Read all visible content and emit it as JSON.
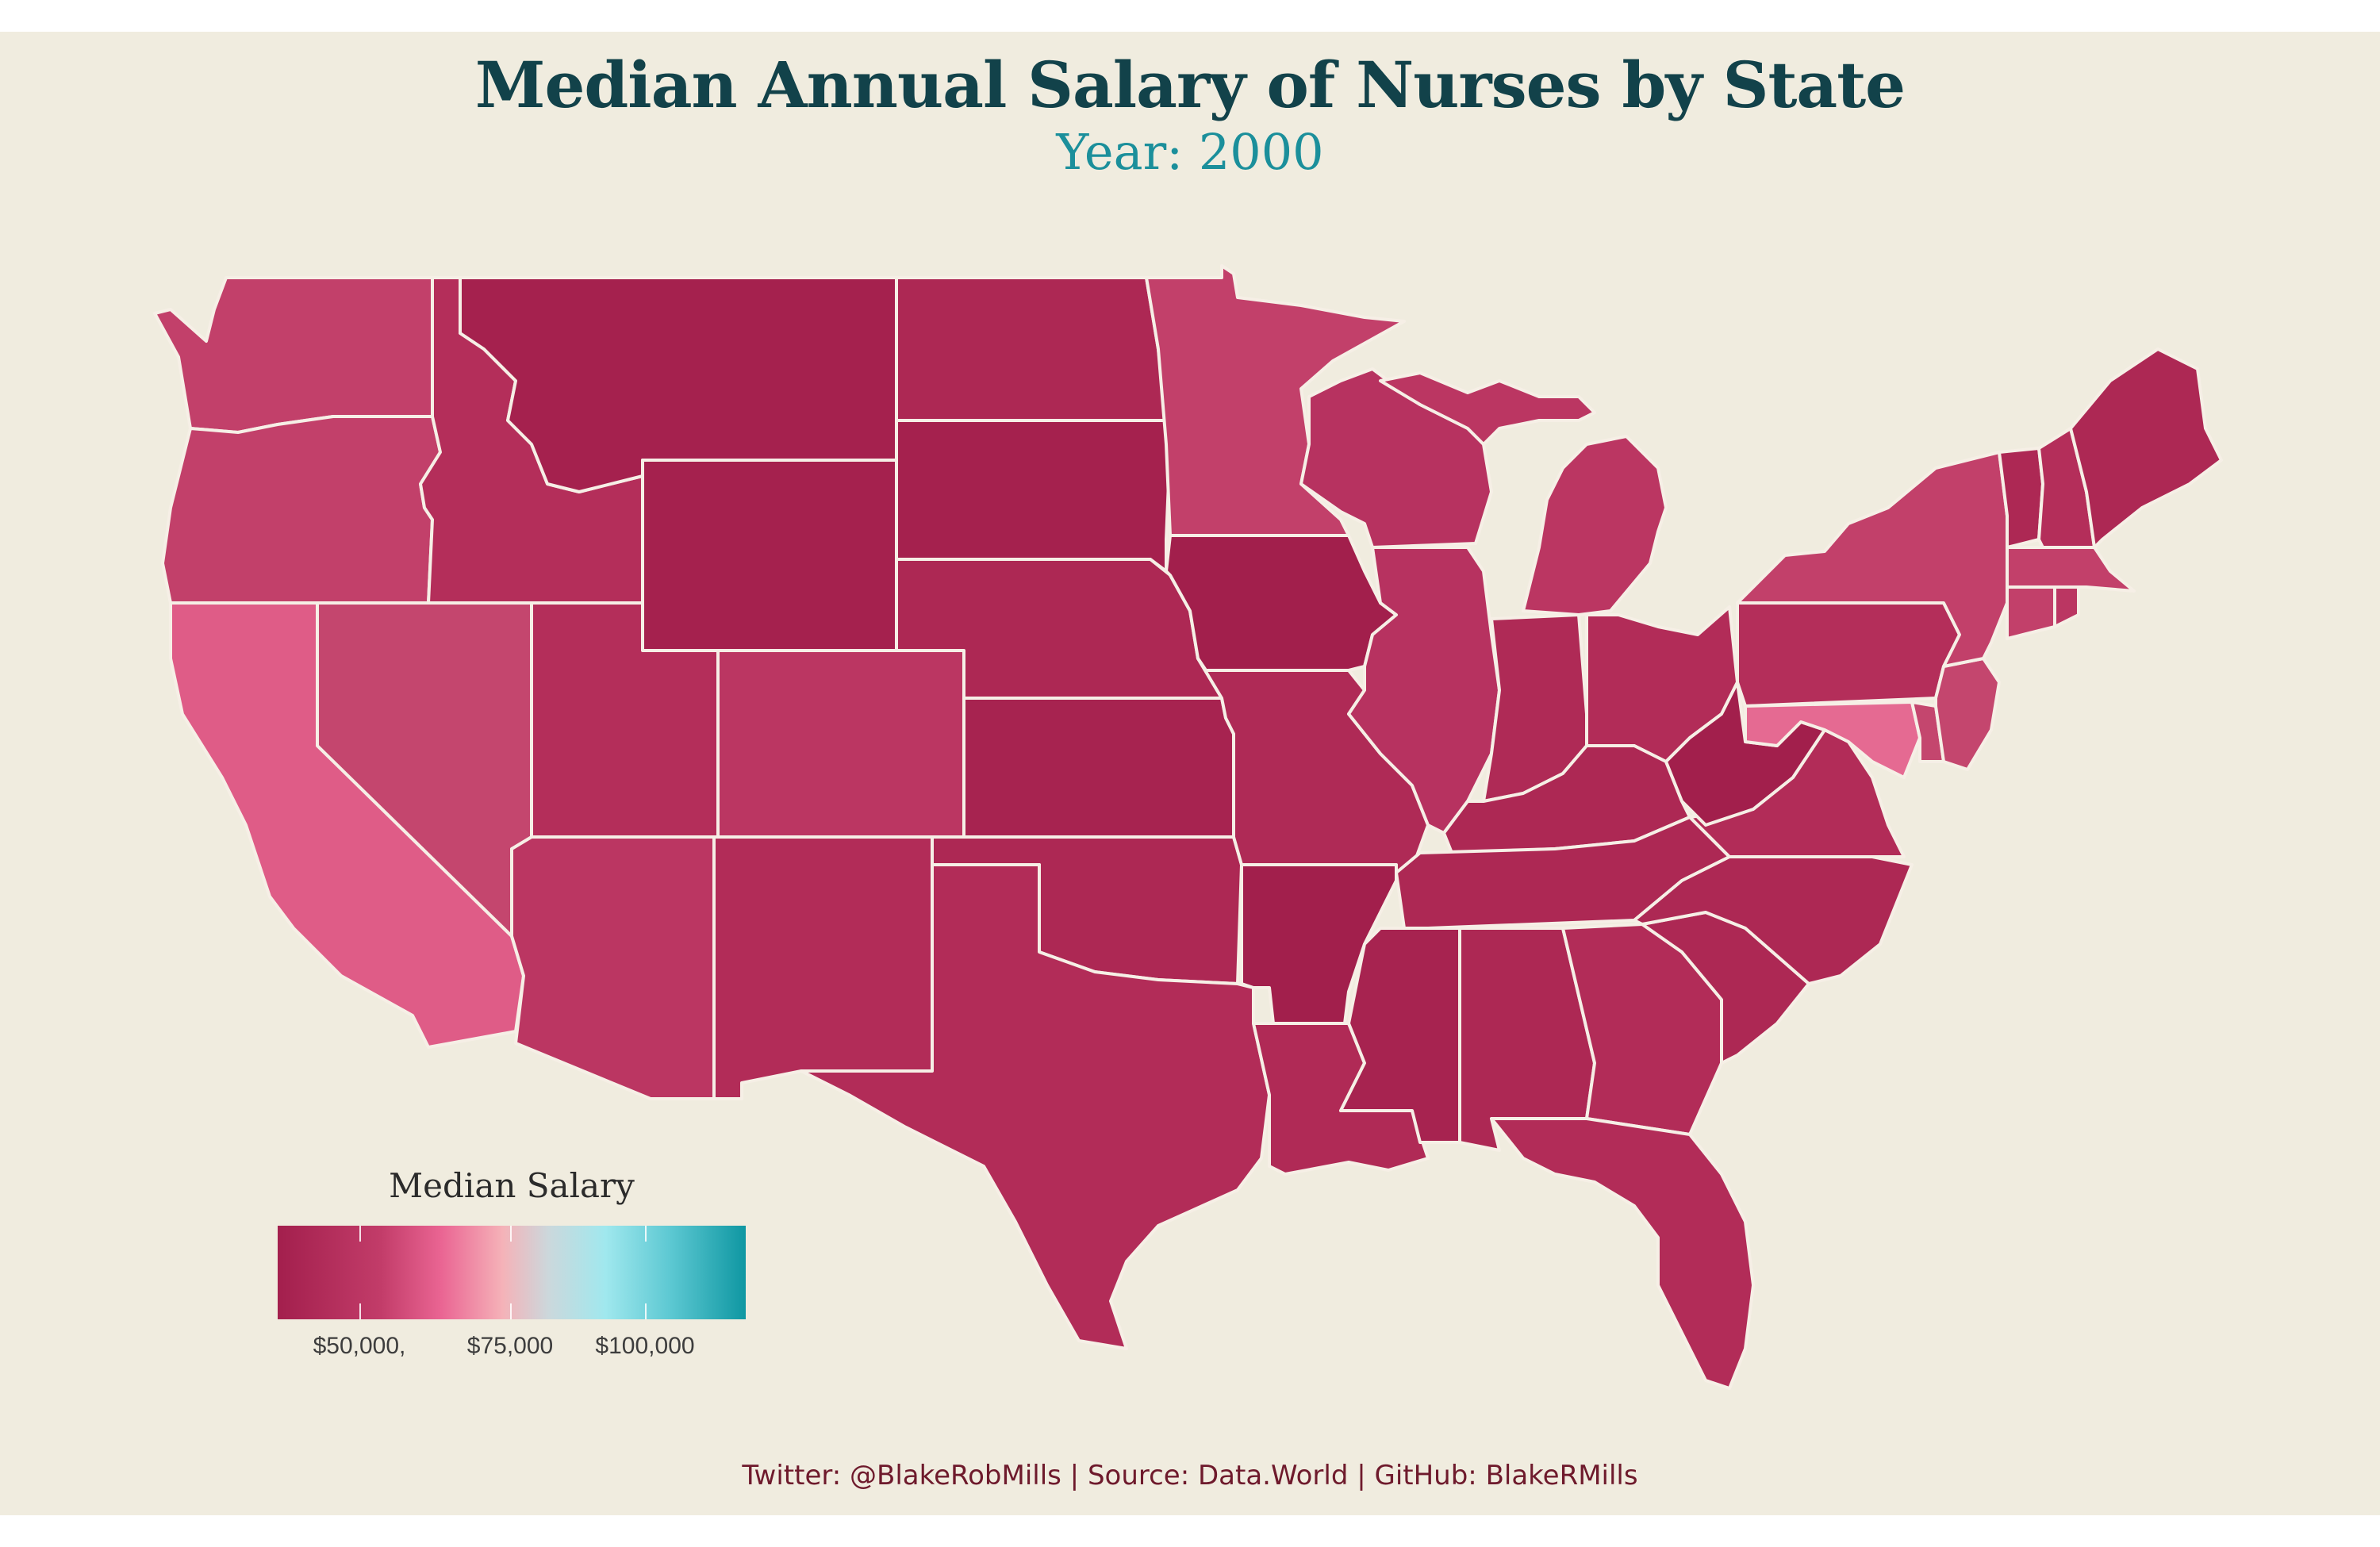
{
  "title": "Median Annual Salary of Nurses by State",
  "subtitle": "Year: 2000",
  "legend": {
    "title": "Median Salary",
    "ticks": [
      "$50,000,",
      "$75,000",
      "$100,000"
    ],
    "tick_values": [
      50000,
      75000,
      100000
    ],
    "color_low": "#a31f4d",
    "color_mid": "#f5b2b8",
    "color_high": "#0f97a2"
  },
  "caption": "Twitter: @BlakeRobMills | Source: Data.World | GitHub: BlakeRMills",
  "colors": {
    "background": "#f0ecdf",
    "title": "#12424a",
    "subtitle": "#1b8f9b",
    "border": "#f6efe6",
    "caption": "#6e1a2c"
  },
  "states": [
    {
      "name": "Washington",
      "color": "#c2406a"
    },
    {
      "name": "Oregon",
      "color": "#c2406a"
    },
    {
      "name": "California",
      "color": "#df5c87"
    },
    {
      "name": "Nevada",
      "color": "#c4466e"
    },
    {
      "name": "Idaho",
      "color": "#b42e5a"
    },
    {
      "name": "Montana",
      "color": "#a5214e"
    },
    {
      "name": "Wyoming",
      "color": "#a5214e"
    },
    {
      "name": "Utah",
      "color": "#b42e5a"
    },
    {
      "name": "Arizona",
      "color": "#bb3662"
    },
    {
      "name": "Colorado",
      "color": "#bb3662"
    },
    {
      "name": "New Mexico",
      "color": "#b22c58"
    },
    {
      "name": "North Dakota",
      "color": "#ad2854"
    },
    {
      "name": "South Dakota",
      "color": "#a5214e"
    },
    {
      "name": "Nebraska",
      "color": "#ad2854"
    },
    {
      "name": "Kansas",
      "color": "#a72350"
    },
    {
      "name": "Oklahoma",
      "color": "#ad2854"
    },
    {
      "name": "Texas",
      "color": "#b22c58"
    },
    {
      "name": "Minnesota",
      "color": "#c2406a"
    },
    {
      "name": "Iowa",
      "color": "#a21f4c"
    },
    {
      "name": "Missouri",
      "color": "#af2a56"
    },
    {
      "name": "Arkansas",
      "color": "#a21f4c"
    },
    {
      "name": "Louisiana",
      "color": "#b02a56"
    },
    {
      "name": "Wisconsin",
      "color": "#b73260"
    },
    {
      "name": "Illinois",
      "color": "#b73260"
    },
    {
      "name": "Michigan",
      "color": "#bb3662"
    },
    {
      "name": "Indiana",
      "color": "#af2a56"
    },
    {
      "name": "Ohio",
      "color": "#b22c58"
    },
    {
      "name": "Kentucky",
      "color": "#ad2854"
    },
    {
      "name": "Tennessee",
      "color": "#ad2854"
    },
    {
      "name": "Mississippi",
      "color": "#a72350"
    },
    {
      "name": "Alabama",
      "color": "#ad2854"
    },
    {
      "name": "Georgia",
      "color": "#b22c58"
    },
    {
      "name": "Florida",
      "color": "#b22c58"
    },
    {
      "name": "South Carolina",
      "color": "#ad2854"
    },
    {
      "name": "North Carolina",
      "color": "#ad2854"
    },
    {
      "name": "Virginia",
      "color": "#b22c58"
    },
    {
      "name": "West Virginia",
      "color": "#a21f4c"
    },
    {
      "name": "Pennsylvania",
      "color": "#b42e5a"
    },
    {
      "name": "New York",
      "color": "#c2406a"
    },
    {
      "name": "New Jersey",
      "color": "#c4466e"
    },
    {
      "name": "Maryland",
      "color": "#e56a92"
    },
    {
      "name": "Delaware",
      "color": "#c4466e"
    },
    {
      "name": "Vermont",
      "color": "#ad2854"
    },
    {
      "name": "New Hampshire",
      "color": "#b42e5a"
    },
    {
      "name": "Maine",
      "color": "#ad2854"
    },
    {
      "name": "Massachusetts",
      "color": "#c2406a"
    },
    {
      "name": "Connecticut",
      "color": "#c2406a"
    },
    {
      "name": "Rhode Island",
      "color": "#bb3662"
    }
  ]
}
